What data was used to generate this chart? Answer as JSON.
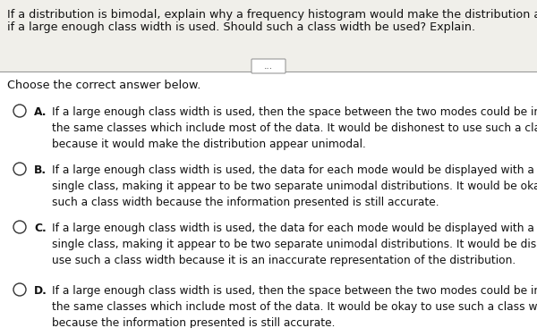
{
  "bg_color": "#f0efea",
  "header_bg": "#f0efea",
  "bottom_bg": "#ffffff",
  "header_text_line1": "If a distribution is bimodal, explain why a frequency histogram would make the distribution appear unimodà",
  "header_text_line2": "if a large enough class width is used. Should such a class width be used? Explain.",
  "divider_label": "...",
  "prompt": "Choose the correct answer below.",
  "options": [
    {
      "letter": "A.",
      "text": "If a large enough class width is used, then the space between the two modes could be included in\nthe same classes which include most of the data. It would be dishonest to use such a class width\nbecause it would make the distribution appear unimodal."
    },
    {
      "letter": "B.",
      "text": "If a large enough class width is used, the data for each mode would be displayed with a\nsingle class, making it appear to be two separate unimodal distributions. It would be okay to use\nsuch a class width because the information presented is still accurate."
    },
    {
      "letter": "C.",
      "text": "If a large enough class width is used, the data for each mode would be displayed with a\nsingle class, making it appear to be two separate unimodal distributions. It would be dishonest to\nuse such a class width because it is an inaccurate representation of the distribution."
    },
    {
      "letter": "D.",
      "text": "If a large enough class width is used, then the space between the two modes could be included in\nthe same classes which include most of the data. It would be okay to use such a class width\nbecause the information presented is still accurate."
    }
  ],
  "header_fontsize": 9.2,
  "prompt_fontsize": 9.2,
  "option_fontsize": 8.8,
  "text_color": "#111111",
  "circle_color": "#333333"
}
